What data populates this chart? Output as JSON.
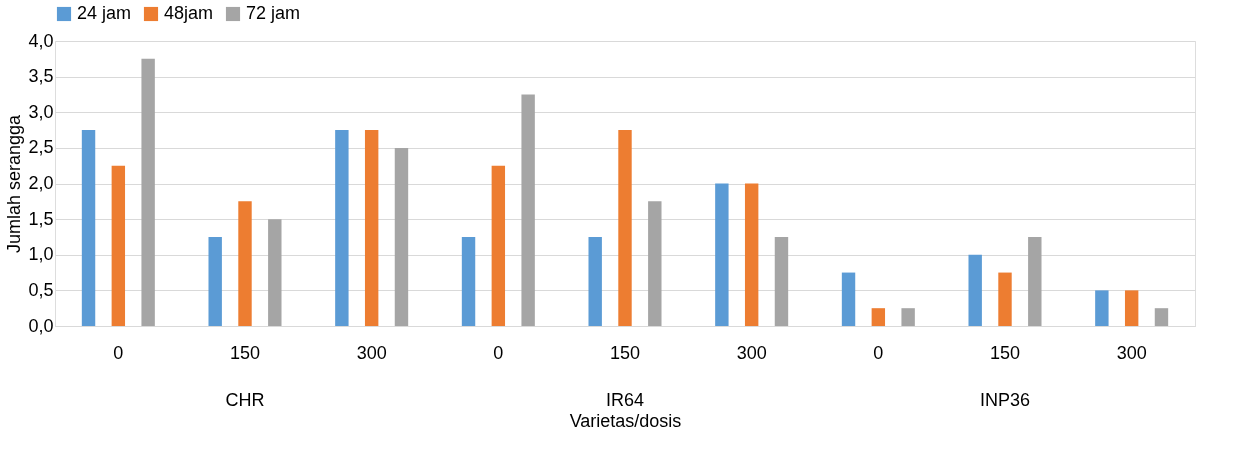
{
  "chart_data": {
    "type": "bar",
    "xlabel": "Varietas/dosis",
    "ylabel": "Jumlah serangga",
    "categories": [
      "0",
      "150",
      "300",
      "0",
      "150",
      "300",
      "0",
      "150",
      "300"
    ],
    "annotations": [
      "CHR",
      "IR64",
      "INP36"
    ],
    "series": [
      {
        "name": "24 jam",
        "color": "#5b9bd5",
        "values": [
          2.75,
          1.25,
          2.75,
          1.25,
          1.25,
          2.0,
          0.75,
          1.0,
          0.5
        ]
      },
      {
        "name": "48jam",
        "color": "#ed7d31",
        "values": [
          2.25,
          1.75,
          2.75,
          2.25,
          2.75,
          2.0,
          0.25,
          0.75,
          0.5
        ]
      },
      {
        "name": "72 jam",
        "color": "#a5a5a5",
        "values": [
          3.75,
          1.5,
          2.5,
          3.25,
          1.75,
          1.25,
          0.25,
          1.25,
          0.25
        ]
      }
    ],
    "ylim": [
      0,
      4
    ],
    "yticks": [
      {
        "value": 0,
        "label": "0,0"
      },
      {
        "value": 0.5,
        "label": "0,5"
      },
      {
        "value": 1,
        "label": "1,0"
      },
      {
        "value": 1.5,
        "label": "1,5"
      },
      {
        "value": 2,
        "label": "2,0"
      },
      {
        "value": 2.5,
        "label": "2,5"
      },
      {
        "value": 3,
        "label": "3,0"
      },
      {
        "value": 3.5,
        "label": "3,5"
      },
      {
        "value": 4,
        "label": "4,0"
      }
    ],
    "grid": "y",
    "legend": "top"
  }
}
